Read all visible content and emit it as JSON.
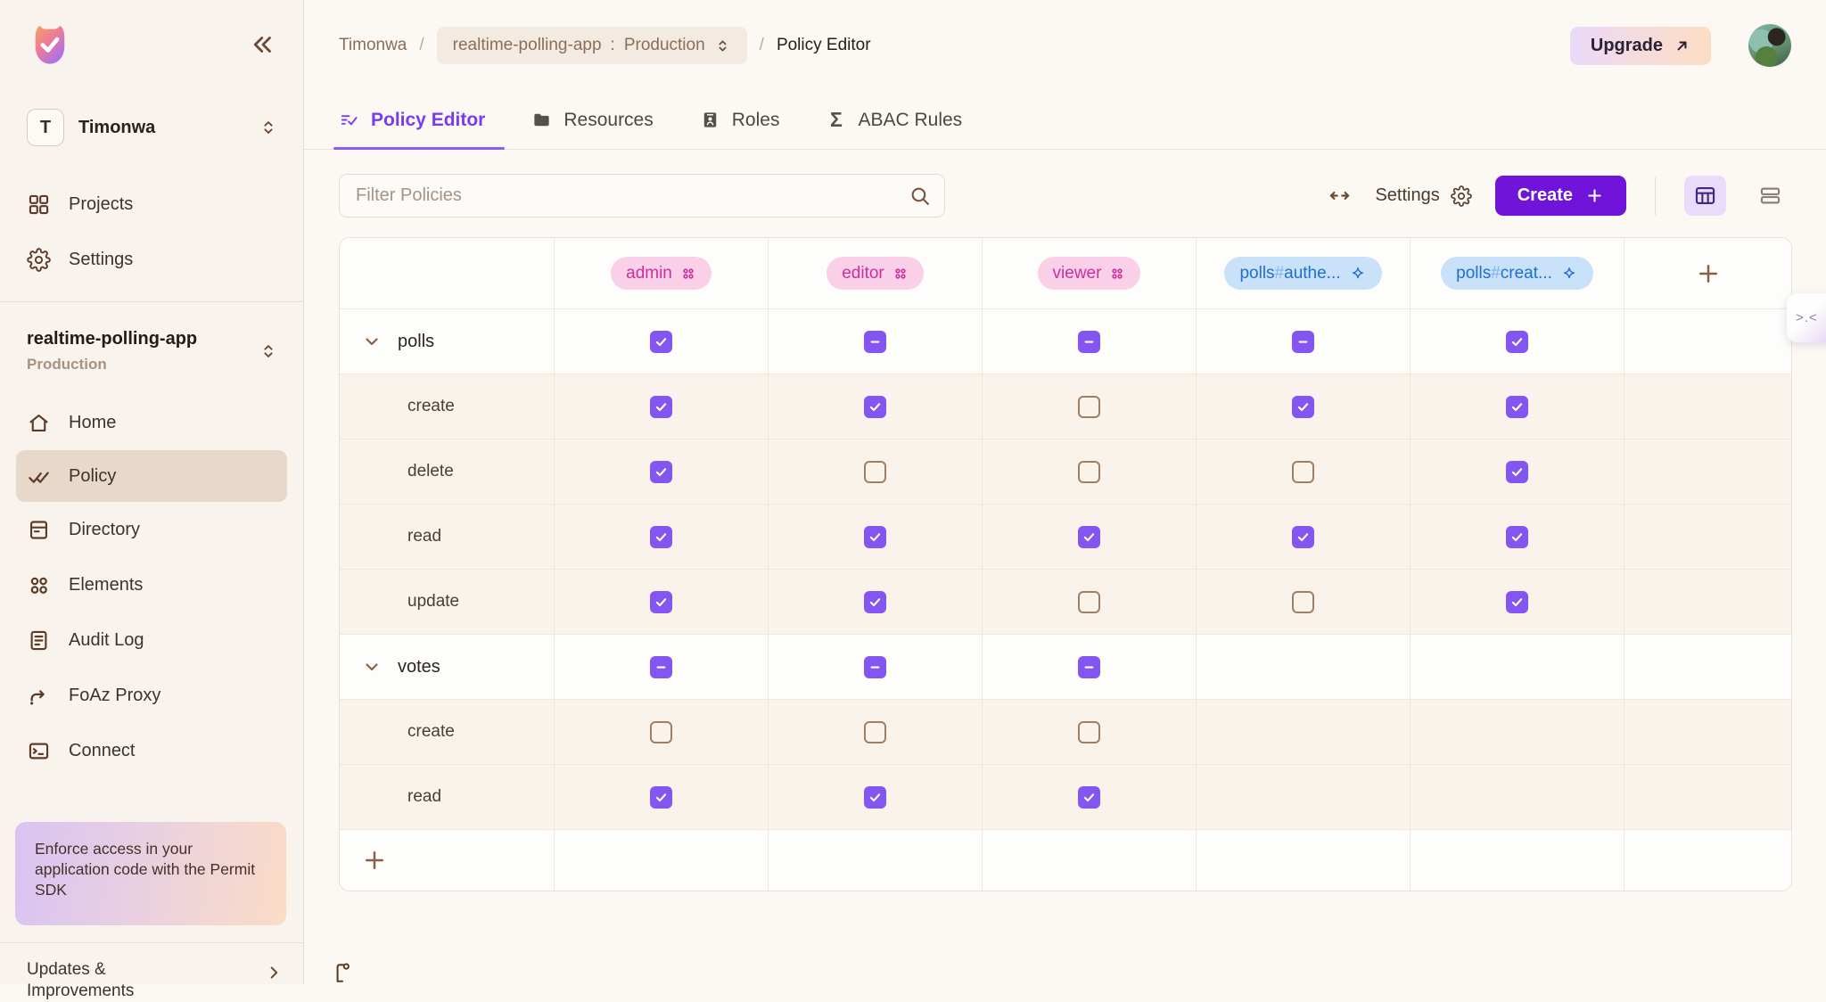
{
  "app": {
    "name": "Permit"
  },
  "colors": {
    "accent_purple": "#7014da",
    "checkbox_purple": "#8356f1",
    "tab_active_purple": "#7a3bee",
    "role_pill_bg": "#f9d0e7",
    "role_pill_text": "#cb2f9e",
    "resource_pill_bg": "#c9e1f9",
    "resource_pill_text": "#1e6fd0",
    "sidebar_bg": "#f9f3ed",
    "active_item_bg": "#e8d8ca"
  },
  "sidebar": {
    "org": {
      "initial": "T",
      "name": "Timonwa"
    },
    "top_items": [
      {
        "label": "Projects",
        "icon": "grid-icon"
      },
      {
        "label": "Settings",
        "icon": "gear-icon"
      }
    ],
    "project": {
      "name": "realtime-polling-app",
      "environment": "Production"
    },
    "nav_items": [
      {
        "label": "Home",
        "icon": "home-icon",
        "active": false
      },
      {
        "label": "Policy",
        "icon": "double-check-icon",
        "active": true
      },
      {
        "label": "Directory",
        "icon": "directory-icon",
        "active": false
      },
      {
        "label": "Elements",
        "icon": "elements-icon",
        "active": false
      },
      {
        "label": "Audit Log",
        "icon": "audit-log-icon",
        "active": false
      },
      {
        "label": "FoAz Proxy",
        "icon": "proxy-arrow-icon",
        "active": false
      },
      {
        "label": "Connect",
        "icon": "terminal-icon",
        "active": false
      }
    ],
    "sdk_banner": "Enforce access in your application code with the Permit SDK",
    "updates_label": "Updates & Improvements"
  },
  "header": {
    "breadcrumb": {
      "org": "Timonwa",
      "separator": "/",
      "project": "realtime-polling-app",
      "colon": ":",
      "environment": "Production",
      "page": "Policy Editor"
    },
    "upgrade_label": "Upgrade"
  },
  "tabs": [
    {
      "label": "Policy Editor",
      "icon": "policy-editor-icon",
      "active": true
    },
    {
      "label": "Resources",
      "icon": "folder-icon",
      "active": false
    },
    {
      "label": "Roles",
      "icon": "id-badge-icon",
      "active": false
    },
    {
      "label": "ABAC Rules",
      "icon": "sigma-icon",
      "active": false
    }
  ],
  "toolbar": {
    "filter_placeholder": "Filter Policies",
    "settings_label": "Settings",
    "create_label": "Create"
  },
  "policy_table": {
    "columns": [
      {
        "label": "admin",
        "type": "role",
        "icon": "four-dots-icon"
      },
      {
        "label": "editor",
        "type": "role",
        "icon": "four-dots-icon"
      },
      {
        "label": "viewer",
        "type": "role",
        "icon": "four-dots-icon"
      },
      {
        "label": "polls#authe...",
        "type": "resource-role",
        "icon": "sparkle-icon",
        "prefix": "polls",
        "hash": "#",
        "suffix": "authe..."
      },
      {
        "label": "polls#creat...",
        "type": "resource-role",
        "icon": "sparkle-icon",
        "prefix": "polls",
        "hash": "#",
        "suffix": "creat..."
      }
    ],
    "resources": [
      {
        "name": "polls",
        "states": [
          "checked",
          "indeterminate",
          "indeterminate",
          "indeterminate",
          "checked"
        ],
        "actions": [
          {
            "name": "create",
            "states": [
              "checked",
              "checked",
              "unchecked",
              "checked",
              "checked"
            ]
          },
          {
            "name": "delete",
            "states": [
              "checked",
              "unchecked",
              "unchecked",
              "unchecked",
              "checked"
            ]
          },
          {
            "name": "read",
            "states": [
              "checked",
              "checked",
              "checked",
              "checked",
              "checked"
            ]
          },
          {
            "name": "update",
            "states": [
              "checked",
              "checked",
              "unchecked",
              "unchecked",
              "checked"
            ]
          }
        ]
      },
      {
        "name": "votes",
        "states": [
          "indeterminate",
          "indeterminate",
          "indeterminate",
          "none",
          "none"
        ],
        "actions": [
          {
            "name": "create",
            "states": [
              "unchecked",
              "unchecked",
              "unchecked",
              "none",
              "none"
            ]
          },
          {
            "name": "read",
            "states": [
              "checked",
              "checked",
              "checked",
              "none",
              "none"
            ]
          }
        ]
      }
    ]
  },
  "corner_badge": {
    "face": ">.<"
  }
}
